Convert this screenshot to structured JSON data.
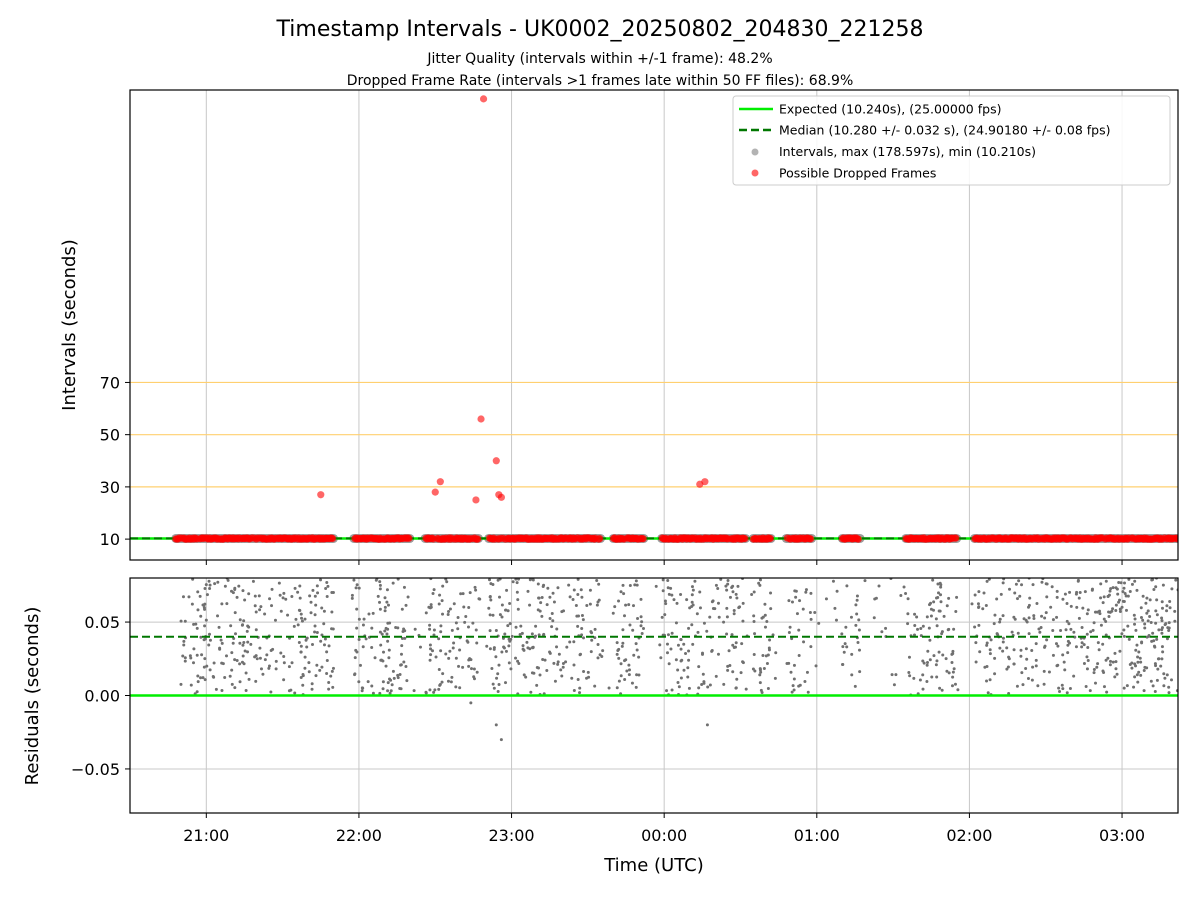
{
  "colors": {
    "expected": "#00ee00",
    "median": "#007700",
    "intervals": "#808080",
    "dropped": "#ff0000",
    "hline": "#ffd070",
    "grid": "#c8c8c8"
  },
  "chart_data": {
    "type": "scatter",
    "title": "Timestamp Intervals - UK0002_20250802_204830_221258",
    "subtitle_1": "Jitter Quality (intervals within +/-1 frame): 48.2%",
    "subtitle_2": "Dropped Frame Rate (intervals >1 frames late within 50 FF files): 68.9%",
    "xlabel": "Time (UTC)",
    "x_ticks": [
      "21:00",
      "22:00",
      "23:00",
      "00:00",
      "01:00",
      "02:00",
      "03:00"
    ],
    "x_range": [
      "2025-08-02 20:30",
      "2025-08-03 03:22"
    ],
    "grid": true,
    "legend": {
      "placement": "upper right",
      "entries": [
        "Expected (10.240s), (25.00000 fps)",
        "Median (10.280 +/- 0.032 s), (24.90180 +/- 0.08 fps)",
        "Intervals, max (178.597s), min (10.210s)",
        "Possible Dropped Frames"
      ]
    },
    "top_panel": {
      "ylabel": "Intervals (seconds)",
      "y_ticks": [
        "10",
        "30",
        "50",
        "70"
      ],
      "ylim": [
        2,
        182
      ],
      "expected_interval": 10.24,
      "median_interval": 10.28,
      "reference_lines": [
        30,
        50,
        70
      ],
      "dense_band_start": "2025-08-02 20:48",
      "dense_band_end": "2025-08-03 03:22",
      "dense_band_gaps": [
        [
          "2025-08-02 21:50",
          "2025-08-02 21:58"
        ],
        [
          "2025-08-02 22:20",
          "2025-08-02 22:26"
        ],
        [
          "2025-08-02 22:47",
          "2025-08-02 22:51"
        ],
        [
          "2025-08-02 23:35",
          "2025-08-02 23:40"
        ],
        [
          "2025-08-02 23:52",
          "2025-08-02 23:59"
        ],
        [
          "2025-08-03 00:32",
          "2025-08-03 00:35"
        ],
        [
          "2025-08-03 00:42",
          "2025-08-03 00:48"
        ],
        [
          "2025-08-03 00:58",
          "2025-08-03 01:10"
        ],
        [
          "2025-08-03 01:17",
          "2025-08-03 01:35"
        ],
        [
          "2025-08-03 01:55",
          "2025-08-03 02:02"
        ]
      ],
      "dropped_outliers": [
        {
          "t": "2025-08-02 21:45",
          "y": 27
        },
        {
          "t": "2025-08-02 22:30",
          "y": 28
        },
        {
          "t": "2025-08-02 22:32",
          "y": 32
        },
        {
          "t": "2025-08-02 22:46",
          "y": 25
        },
        {
          "t": "2025-08-02 22:48",
          "y": 56
        },
        {
          "t": "2025-08-02 22:49",
          "y": 178.6
        },
        {
          "t": "2025-08-02 22:54",
          "y": 40
        },
        {
          "t": "2025-08-02 22:55",
          "y": 27
        },
        {
          "t": "2025-08-02 22:56",
          "y": 26
        },
        {
          "t": "2025-08-03 00:14",
          "y": 31
        },
        {
          "t": "2025-08-03 00:16",
          "y": 32
        }
      ]
    },
    "bottom_panel": {
      "ylabel": "Residuals (seconds)",
      "y_ticks": [
        "−0.05",
        "0.00",
        "0.05"
      ],
      "ylim": [
        -0.08,
        0.08
      ],
      "expected_residual": 0.0,
      "median_residual": 0.04,
      "residual_range": [
        0.0,
        0.08
      ],
      "residual_start": "2025-08-02 20:50",
      "residual_end": "2025-08-03 03:22",
      "negative_outliers": [
        {
          "t": "2025-08-02 22:44",
          "y": -0.005
        },
        {
          "t": "2025-08-02 22:54",
          "y": -0.02
        },
        {
          "t": "2025-08-02 22:56",
          "y": -0.03
        },
        {
          "t": "2025-08-03 00:17",
          "y": -0.02
        }
      ]
    }
  }
}
